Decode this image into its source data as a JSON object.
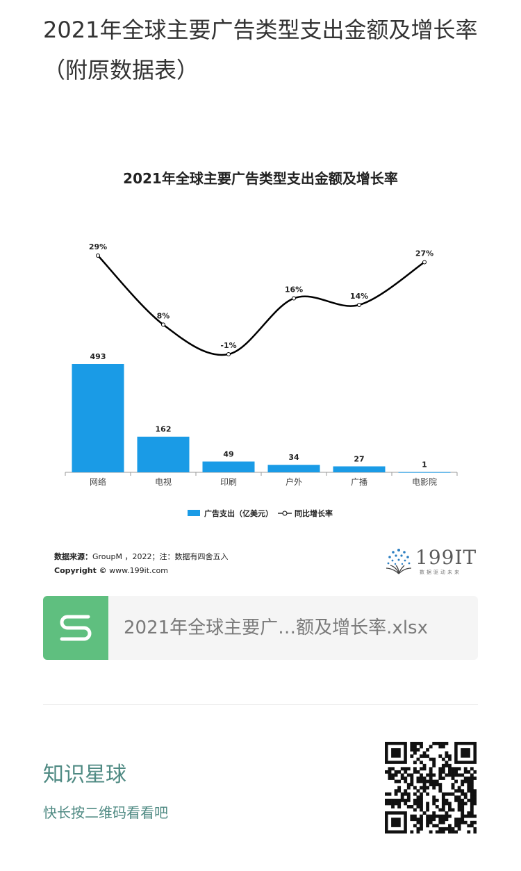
{
  "article": {
    "title": "2021年全球主要广告类型支出金额及增长率（附原数据表）"
  },
  "chart": {
    "title": "2021年全球主要广告类型支出金额及增长率",
    "legend_bar": "广告支出（亿美元）",
    "legend_line": "同比增长率",
    "source_label": "数据来源：",
    "source_text": "GroupM ，2022；注：数据有四舍五入",
    "copyright_label": "Copyright ©",
    "copyright_text": " www.199it.com",
    "logo_text": "199IT",
    "logo_sub": "数据驱动未来"
  },
  "chart_data": {
    "type": "bar",
    "title": "2021年全球主要广告类型支出金额及增长率",
    "categories": [
      "网络",
      "电视",
      "印刷",
      "户外",
      "广播",
      "电影院"
    ],
    "series": [
      {
        "name": "广告支出（亿美元）",
        "type": "bar",
        "values": [
          493,
          162,
          49,
          34,
          27,
          1
        ],
        "color": "#1a9be6"
      },
      {
        "name": "同比增长率",
        "type": "line",
        "values": [
          29,
          8,
          -1,
          16,
          14,
          27
        ],
        "unit": "%",
        "color": "#000000"
      }
    ],
    "bar_labels": [
      "493",
      "162",
      "49",
      "34",
      "27",
      "1"
    ],
    "line_labels": [
      "29%",
      "8%",
      "-1%",
      "16%",
      "14%",
      "27%"
    ],
    "legend_position": "bottom",
    "grid": false
  },
  "attachment": {
    "file_name": "2021年全球主要广…额及增长率.xlsx",
    "icon": "spreadsheet-s-icon",
    "color": "#5fbf7f"
  },
  "footer": {
    "planet_name": "知识星球",
    "planet_hint": "快长按二维码看看吧",
    "accent": "#4f8a83"
  }
}
